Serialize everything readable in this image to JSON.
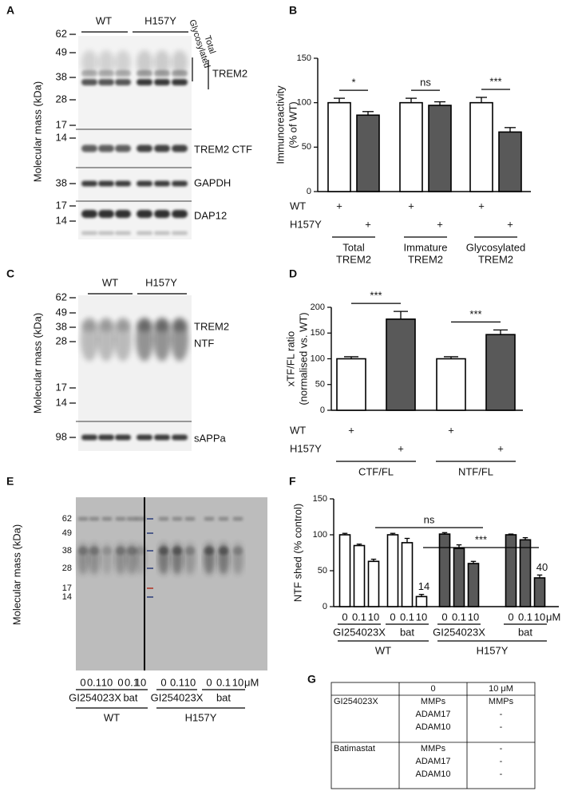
{
  "letters": [
    "A",
    "B",
    "C",
    "D",
    "E",
    "F",
    "G"
  ],
  "blot_a": {
    "y_label": "Molecular mass (kDa)",
    "groups": [
      "WT",
      "H157Y"
    ],
    "markers": [
      62,
      49,
      38,
      28,
      17,
      14,
      38,
      17,
      14
    ],
    "side_labels": [
      "Glycosylated",
      "Total"
    ],
    "band_labels": [
      "TREM2",
      "TREM2 CTF",
      "GAPDH",
      "DAP12"
    ]
  },
  "blot_c": {
    "y_label": "Molecular mass (kDa)",
    "groups": [
      "WT",
      "H157Y"
    ],
    "markers": [
      62,
      49,
      38,
      28,
      17,
      14,
      98
    ],
    "band_labels": [
      "TREM2",
      "NTF",
      "sAPPa"
    ]
  },
  "blot_e": {
    "y_label": "Molecular mass (kDa)",
    "markers": [
      62,
      49,
      38,
      28,
      17,
      14
    ],
    "doses": [
      0,
      0.1,
      10
    ],
    "unit": "μM",
    "treatments": [
      "GI254023X",
      "bat"
    ],
    "groups": [
      "WT",
      "H157Y"
    ]
  },
  "chart_data": [
    {
      "type": "bar",
      "y_label": [
        "Immunoreactivity",
        "(% of WT)"
      ],
      "ylim": [
        0,
        150
      ],
      "yticks": [
        0,
        50,
        100,
        150
      ],
      "categories": [
        [
          "Total",
          "TREM2"
        ],
        [
          "Immature",
          "TREM2"
        ],
        [
          "Glycosylated",
          "TREM2"
        ]
      ],
      "series": [
        {
          "name": "WT",
          "color": "#ffffff",
          "values": [
            100,
            100,
            100
          ],
          "errors": [
            5,
            5,
            6
          ]
        },
        {
          "name": "H157Y",
          "color": "#595959",
          "values": [
            86,
            97,
            67
          ],
          "errors": [
            4,
            4,
            5
          ]
        }
      ],
      "marker": "+",
      "significance": [
        "*",
        "ns",
        "***"
      ]
    },
    {
      "type": "bar",
      "y_label": [
        "xTF/FL ratio",
        "(normalised vs. WT)"
      ],
      "ylim": [
        0,
        200
      ],
      "yticks": [
        0,
        50,
        100,
        150,
        200
      ],
      "categories": [
        [
          "CTF/FL"
        ],
        [
          "NTF/FL"
        ]
      ],
      "series": [
        {
          "name": "WT",
          "color": "#ffffff",
          "values": [
            100,
            100
          ],
          "errors": [
            4,
            4
          ]
        },
        {
          "name": "H157Y",
          "color": "#595959",
          "values": [
            177,
            147
          ],
          "errors": [
            15,
            9
          ]
        }
      ],
      "marker": "+",
      "significance": [
        "***",
        "***"
      ]
    },
    {
      "type": "grouped-bar",
      "y_label": "NTF shed (% control)",
      "ylim": [
        0,
        150
      ],
      "yticks": [
        0,
        50,
        100,
        150
      ],
      "doses": [
        0,
        0.1,
        10
      ],
      "unit": "μM",
      "treatments": [
        "GI254023X",
        "bat"
      ],
      "series": [
        {
          "name": "WT",
          "color": "#ffffff",
          "values": [
            100,
            85,
            63,
            100,
            89,
            14
          ],
          "errors": [
            2,
            2,
            3,
            2,
            6,
            3
          ]
        },
        {
          "name": "H157Y",
          "color": "#595959",
          "values": [
            101,
            81,
            60,
            100,
            93,
            40
          ],
          "errors": [
            2,
            5,
            3,
            1,
            3,
            4
          ]
        }
      ],
      "significance": [
        "ns",
        "***"
      ]
    }
  ],
  "table": {
    "columns": [
      "0",
      "10 μM"
    ],
    "rows": [
      {
        "name": "GI254023X",
        "cells": [
          [
            "MMPs",
            "ADAM17",
            "ADAM10"
          ],
          [
            "MMPs",
            "-",
            "-"
          ]
        ]
      },
      {
        "name": "Batimastat",
        "cells": [
          [
            "MMPs",
            "ADAM17",
            "ADAM10"
          ],
          [
            "-",
            "-",
            "-"
          ]
        ]
      }
    ]
  }
}
